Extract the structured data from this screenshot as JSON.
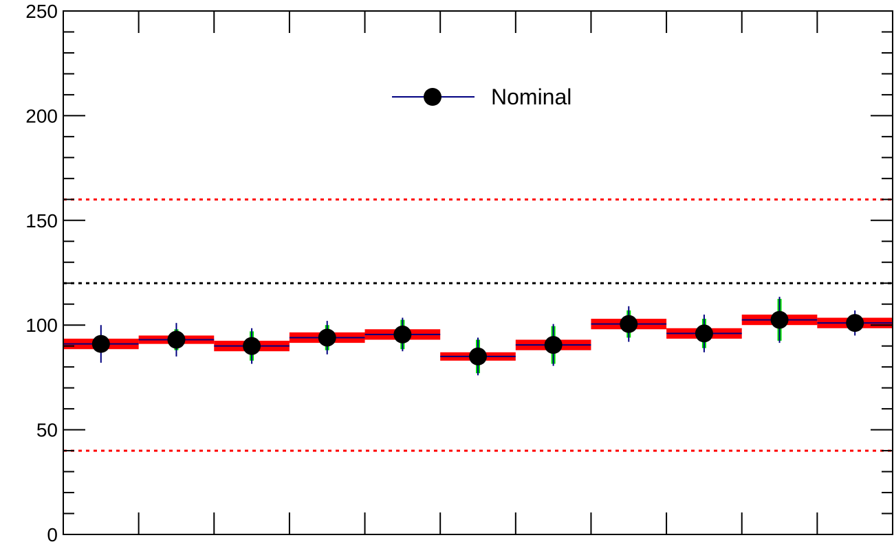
{
  "chart_data": {
    "type": "scatter",
    "title": "",
    "xlabel": "",
    "ylabel": "",
    "ylim": [
      0,
      250
    ],
    "y_ticks": [
      "0",
      "50",
      "100",
      "150",
      "200",
      "250"
    ],
    "n_bins": 11,
    "grid": false,
    "legend": {
      "placement": "top-center",
      "entries": [
        "Nominal"
      ]
    },
    "series": [
      {
        "name": "Nominal",
        "marker_color": "#000000",
        "line_color": "#000080",
        "bins": [
          1,
          2,
          3,
          4,
          5,
          6,
          7,
          8,
          9,
          10,
          11
        ],
        "values": [
          91,
          93,
          90,
          94,
          95.5,
          85,
          90.5,
          100.5,
          96,
          102.5,
          101
        ],
        "stat_err": [
          9,
          8,
          8.5,
          8,
          8,
          9,
          10,
          8.5,
          9,
          11,
          6
        ],
        "syst_err": [
          4,
          5,
          7,
          6,
          7,
          8,
          9,
          6.5,
          7,
          10,
          1
        ],
        "band_err": [
          2.5,
          2,
          2.5,
          2.5,
          2.5,
          2,
          2.5,
          2.5,
          2.5,
          2.5,
          2.5
        ]
      }
    ],
    "reference_lines": [
      {
        "y": 120,
        "color": "#000000",
        "style": "dotted"
      },
      {
        "y": 160,
        "color": "#ff0000",
        "style": "dotted"
      },
      {
        "y": 40,
        "color": "#ff0000",
        "style": "dotted"
      }
    ],
    "colors": {
      "band": "#ff0000",
      "syst_error": "#00dd00",
      "stat_error": "#000080",
      "marker": "#000000"
    }
  }
}
